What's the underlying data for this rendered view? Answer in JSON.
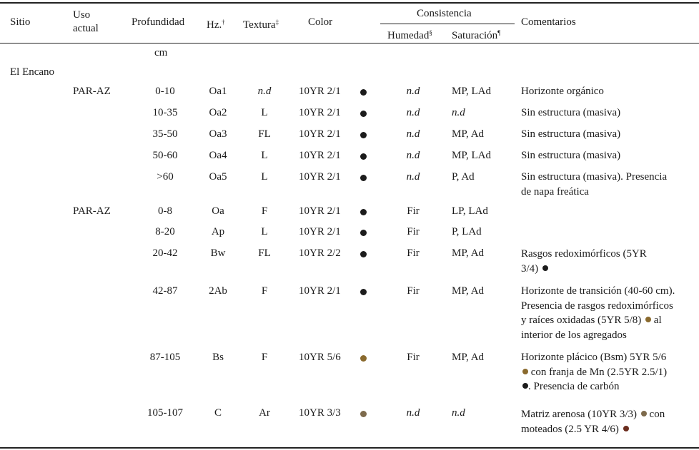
{
  "header": {
    "sitio": "Sitio",
    "uso_line1": "Uso",
    "uso_line2": "actual",
    "profundidad": "Profundidad",
    "hz": "Hz.",
    "hz_mark": "†",
    "textura": "Textura",
    "textura_mark": "‡",
    "color": "Color",
    "consistencia": "Consistencia",
    "humedad": "Humedad",
    "humedad_mark": "§",
    "saturacion": "Saturación",
    "saturacion_mark": "¶",
    "comentarios": "Comentarios"
  },
  "unit": "cm",
  "site": "El Encano",
  "colors": {
    "dark": "#1c1c1c",
    "brown": "#8a6a2e",
    "mid_brown": "#7d6a4c",
    "red_brown": "#6b2d1e"
  },
  "rows": [
    {
      "uso": "PAR-AZ",
      "prof": "0-10",
      "hz": "Oa1",
      "tex": "n.d",
      "color": "10YR 2/1",
      "swatch": "#1c1c1c",
      "hum": "n.d",
      "sat": "MP, LAd",
      "cmt": [
        "Horizonte orgánico"
      ]
    },
    {
      "uso": "",
      "prof": "10-35",
      "hz": "Oa2",
      "tex": "L",
      "color": "10YR 2/1",
      "swatch": "#1c1c1c",
      "hum": "n.d",
      "sat": "n.d",
      "cmt": [
        "Sin estructura (masiva)"
      ]
    },
    {
      "uso": "",
      "prof": "35-50",
      "hz": "Oa3",
      "tex": "FL",
      "color": "10YR 2/1",
      "swatch": "#1c1c1c",
      "hum": "n.d",
      "sat": "MP, Ad",
      "cmt": [
        "Sin estructura (masiva)"
      ]
    },
    {
      "uso": "",
      "prof": "50-60",
      "hz": "Oa4",
      "tex": "L",
      "color": "10YR 2/1",
      "swatch": "#1c1c1c",
      "hum": "n.d",
      "sat": "MP, LAd",
      "cmt": [
        "Sin estructura (masiva)"
      ]
    },
    {
      "uso": "",
      "prof": ">60",
      "hz": "Oa5",
      "tex": "L",
      "color": "10YR 2/1",
      "swatch": "#1c1c1c",
      "hum": "n.d",
      "sat": "P, Ad",
      "cmt": [
        "Sin estructura (masiva). Presencia",
        "de napa freática"
      ]
    },
    {
      "uso": "PAR-AZ",
      "prof": "0-8",
      "hz": "Oa",
      "tex": "F",
      "color": "10YR 2/1",
      "swatch": "#1c1c1c",
      "hum": "Fir",
      "sat": "LP, LAd",
      "cmt": []
    },
    {
      "uso": "",
      "prof": "8-20",
      "hz": "Ap",
      "tex": "L",
      "color": "10YR 2/1",
      "swatch": "#1c1c1c",
      "hum": "Fir",
      "sat": "P, LAd",
      "cmt": []
    },
    {
      "uso": "",
      "prof": "20-42",
      "hz": "Bw",
      "tex": "FL",
      "color": "10YR 2/2",
      "swatch": "#1c1c1c",
      "hum": "Fir",
      "sat": "MP, Ad",
      "cmt": [
        "Rasgos redoximórficos (5YR",
        "3/4)"
      ]
    },
    {
      "uso": "",
      "prof": "42-87",
      "hz": "2Ab",
      "tex": "F",
      "color": "10YR 2/1",
      "swatch": "#1c1c1c",
      "hum": "Fir",
      "sat": "MP, Ad",
      "cmt": [
        "Horizonte de transición (40-60 cm).",
        "Presencia de rasgos redoximórficos",
        "y raíces oxidadas (5YR 5/8)",
        "interior de los agregados"
      ]
    },
    {
      "uso": "",
      "prof": "87-105",
      "hz": "Bs",
      "tex": "F",
      "color": "10YR 5/6",
      "swatch": "#8a6a2e",
      "hum": "Fir",
      "sat": "MP, Ad",
      "cmt": [
        "Horizonte plácico (Bsm) 5YR 5/6",
        "con franja de Mn (2.5YR 2.5/1)",
        ". Presencia de carbón"
      ]
    },
    {
      "uso": "",
      "prof": "105-107",
      "hz": "C",
      "tex": "Ar",
      "color": "10YR 3/3",
      "swatch": "#7d6a4c",
      "hum": "n.d",
      "sat": "n.d",
      "cmt": [
        "Matriz arenosa (10YR 3/3)",
        "moteados (2.5 YR 4/6)"
      ]
    }
  ],
  "inline_tail": {
    "al": "al",
    "con": "con"
  }
}
